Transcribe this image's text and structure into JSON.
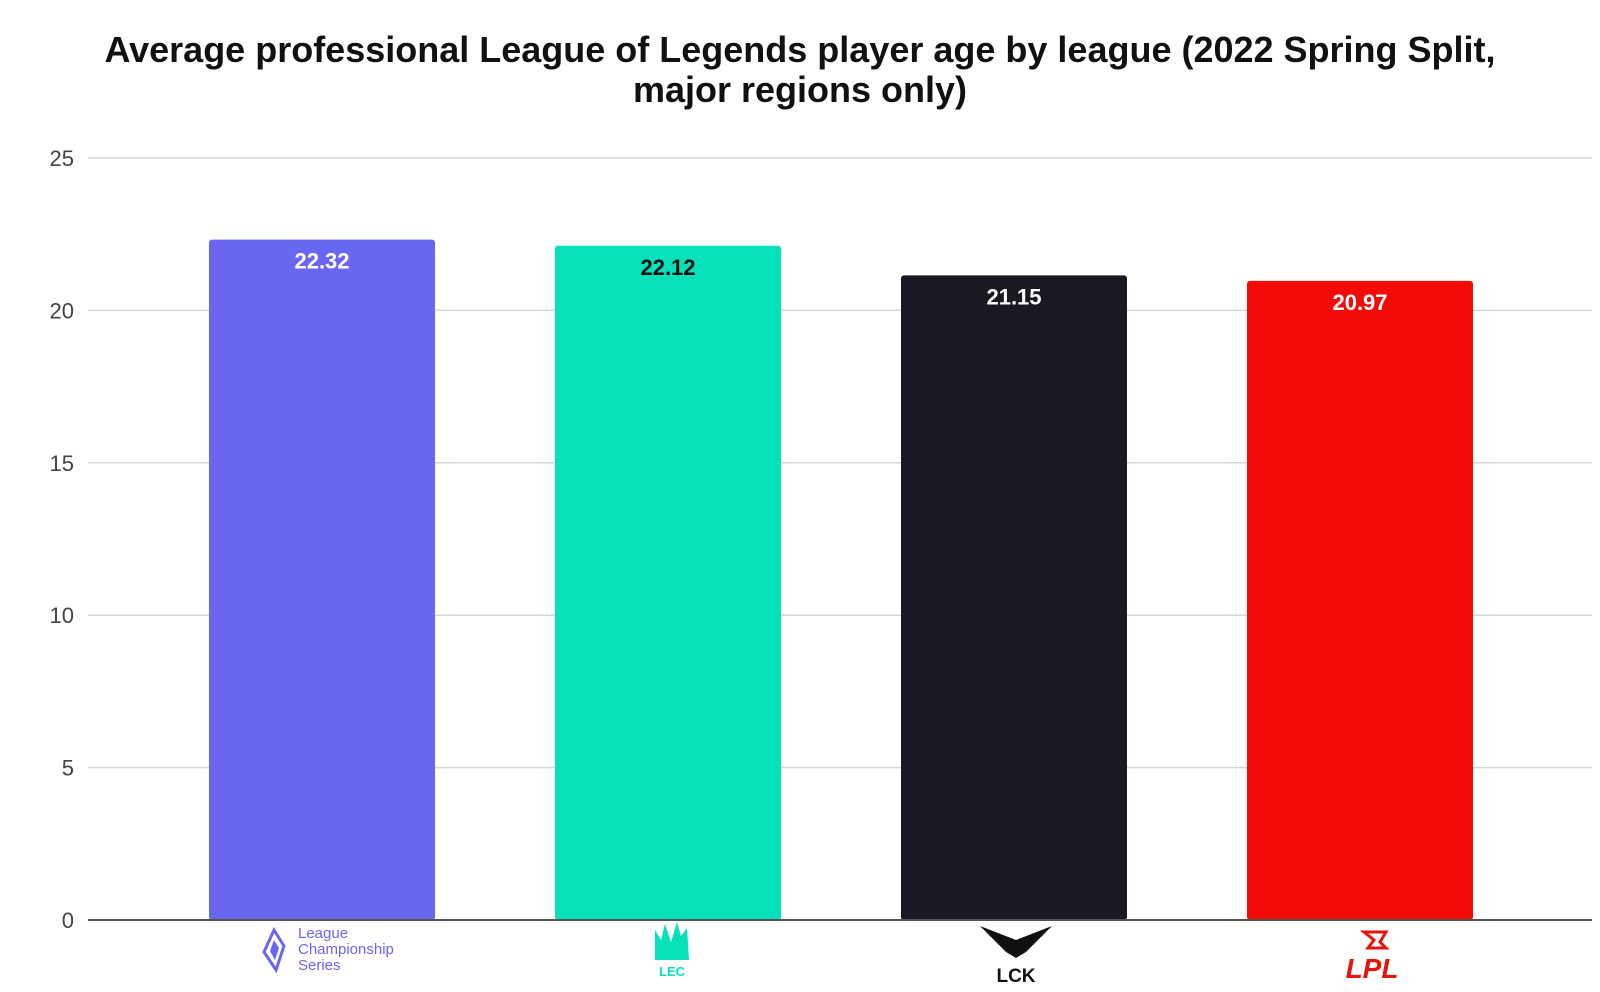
{
  "chart_data": {
    "type": "bar",
    "title_lines": [
      "Average professional League of Legends player age by league (2022 Spring Split,",
      "major regions only)"
    ],
    "categories": [
      "LCS",
      "LEC",
      "LCK",
      "LPL"
    ],
    "values": [
      22.32,
      22.12,
      21.15,
      20.97
    ],
    "value_labels": [
      "22.32",
      "22.12",
      "21.15",
      "20.97"
    ],
    "colors": [
      "#6966f2",
      "#06e0bb",
      "#1b1824",
      "#f40a06"
    ],
    "label_colors": [
      "#ffffff",
      "#111111",
      "#ffffff",
      "#ffffff"
    ],
    "ylim": [
      0,
      25
    ],
    "yticks": [
      0,
      5,
      10,
      15,
      20,
      25
    ],
    "ytick_labels": [
      "0",
      "5",
      "10",
      "15",
      "20",
      "25"
    ],
    "grid": true,
    "legend": "none",
    "xlabel": "",
    "ylabel": "",
    "category_logos": [
      {
        "icon": "lcs-logo",
        "text_lines": [
          "League",
          "Championship",
          "Series"
        ],
        "color": "#6966f2"
      },
      {
        "icon": "lec-logo",
        "text_lines": [
          "LEC"
        ],
        "color": "#06e0bb"
      },
      {
        "icon": "lck-logo",
        "text_lines": [
          "LCK"
        ],
        "color": "#111111"
      },
      {
        "icon": "lpl-logo",
        "text_lines": [
          "LPL"
        ],
        "color": "#e8140c"
      }
    ]
  }
}
